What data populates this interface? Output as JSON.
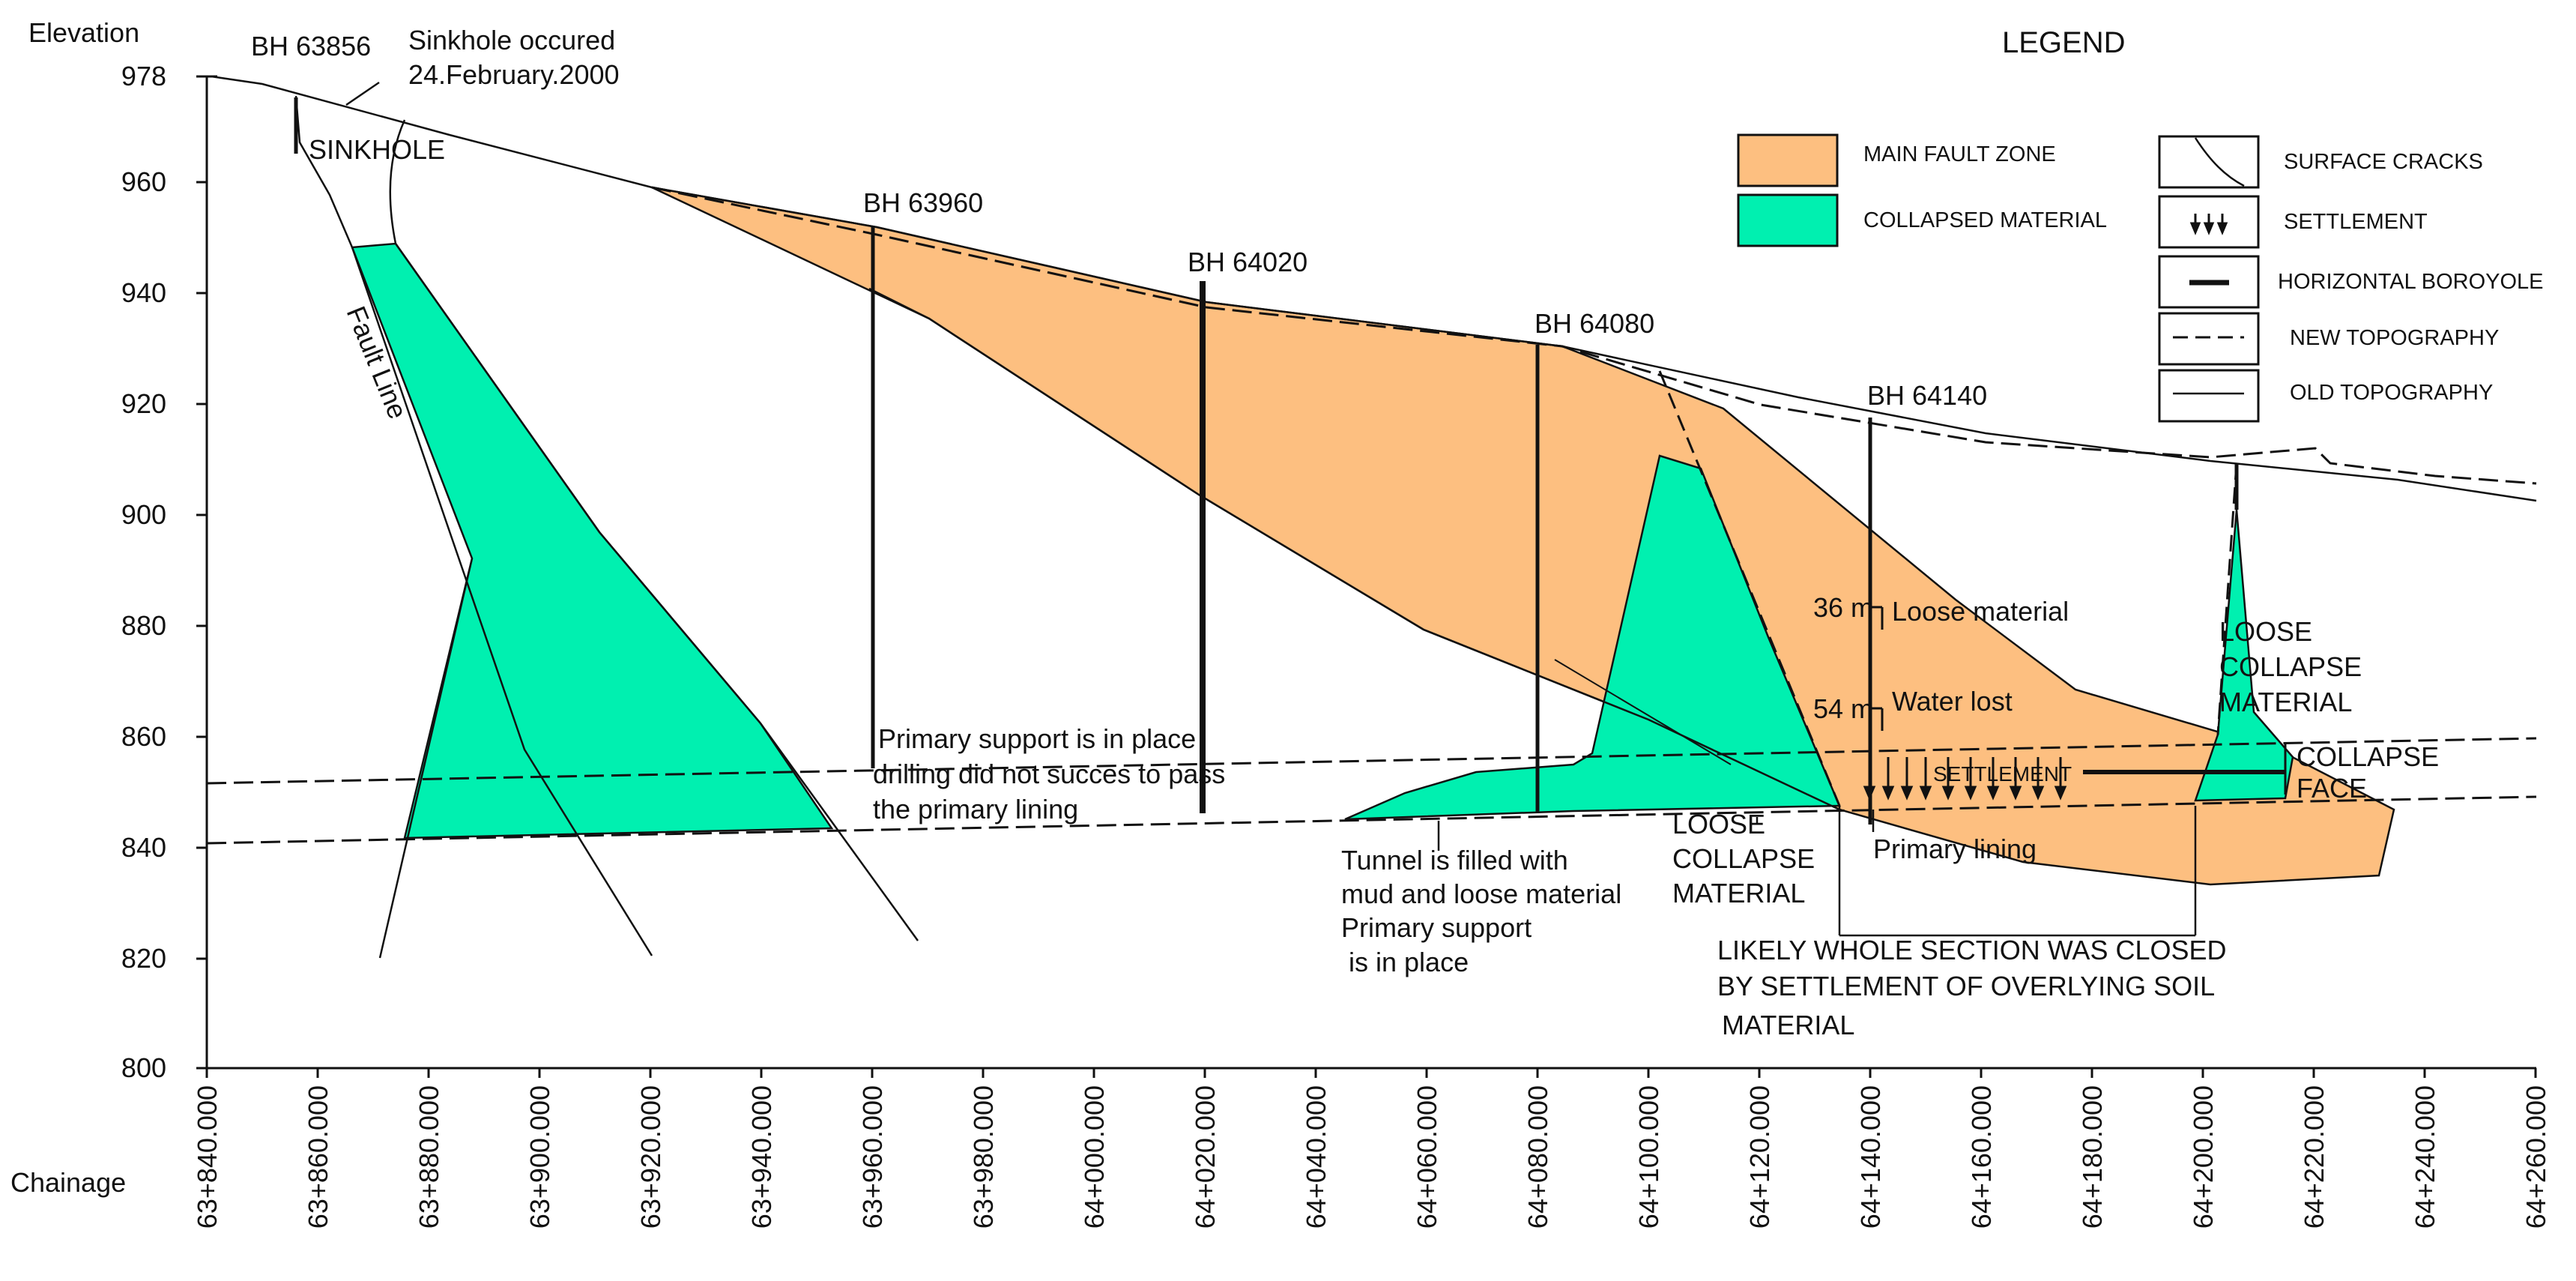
{
  "axes": {
    "y_title": "Elevation",
    "x_title": "Chainage",
    "y_ticks": [
      "978",
      "960",
      "940",
      "920",
      "900",
      "880",
      "860",
      "840",
      "820",
      "800"
    ],
    "x_ticks": [
      "63+840.000",
      "63+860.000",
      "63+880.000",
      "63+900.000",
      "63+920.000",
      "63+940.000",
      "63+960.000",
      "63+980.000",
      "64+000.000",
      "64+020.000",
      "64+040.000",
      "64+060.000",
      "64+080.000",
      "64+100.000",
      "64+120.000",
      "64+140.000",
      "64+160.000",
      "64+180.000",
      "64+200.000",
      "64+220.000",
      "64+240.000",
      "64+260.000"
    ]
  },
  "boreholes": [
    "BH 63856",
    "BH 63960",
    "BH 64020",
    "BH 64080",
    "BH 64140"
  ],
  "annotations": {
    "sinkhole_title_1": "Sinkhole occured",
    "sinkhole_title_2": "24.February.2000",
    "sinkhole": "SINKHOLE",
    "fault_line": "Fault Line",
    "primary_1": "Primary support is in place",
    "primary_2": "drilling did not succes to pass",
    "primary_3": "the primary lining",
    "tunnel_1": "Tunnel is filled with",
    "tunnel_2": "mud and loose material",
    "tunnel_3": "Primary support",
    "tunnel_4": "is in place",
    "loose_a_1": "LOOSE",
    "loose_a_2": "COLLAPSE",
    "loose_a_3": "MATERIAL",
    "loose_b_1": "LOOSE",
    "loose_b_2": "COLLAPSE",
    "loose_b_3": "MATERIAL",
    "m36": "36 m",
    "loose_material": "Loose material",
    "m54": "54 m",
    "water_lost": "Water lost",
    "settlement": "SETTLEMENT",
    "collapse_1": "COLLAPSE",
    "collapse_2": "FACE",
    "primary_lining": "Primary lining",
    "likely_1": "LIKELY WHOLE SECTION WAS CLOSED",
    "likely_2": "BY SETTLEMENT OF OVERLYING SOIL",
    "likely_3": "MATERIAL"
  },
  "legend": {
    "title": "LEGEND",
    "main_fault": "MAIN FAULT ZONE",
    "collapsed": "COLLAPSED MATERIAL",
    "surface_cracks": "SURFACE CRACKS",
    "settlement": "SETTLEMENT",
    "horizontal": "HORIZONTAL BOROYOLE",
    "new_topo": "NEW TOPOGRAPHY",
    "old_topo": "OLD TOPOGRAPHY"
  },
  "colors": {
    "fault": "#FDBF80",
    "collapsed": "#00F0B0",
    "line": "#111111"
  }
}
